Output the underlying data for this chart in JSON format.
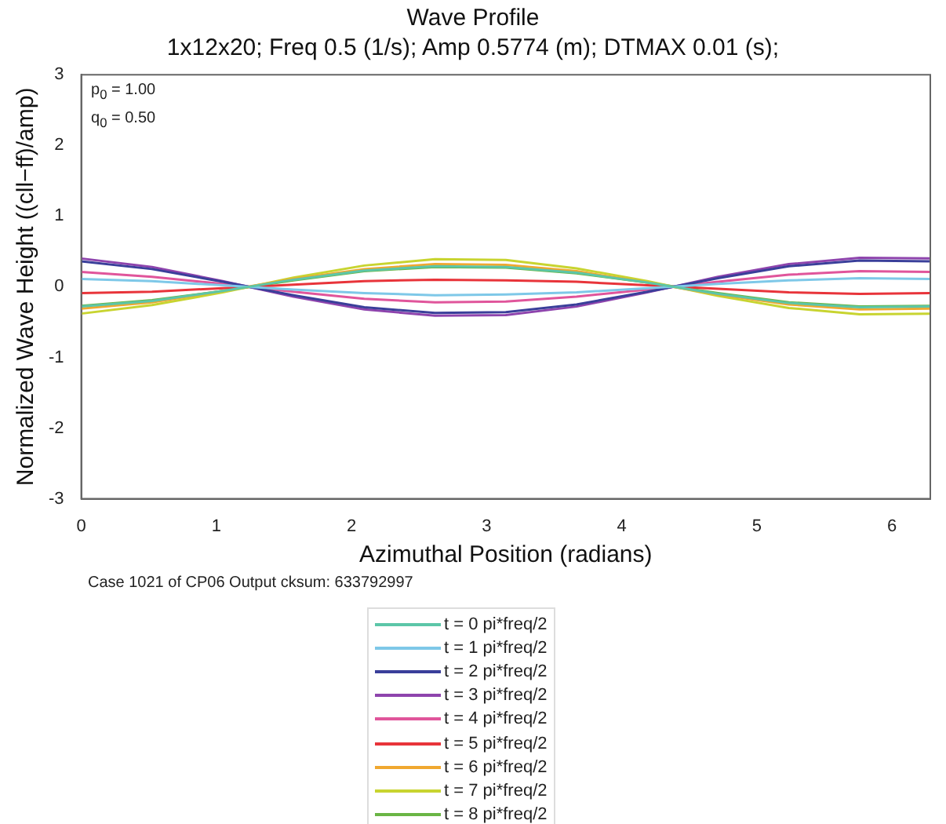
{
  "chart_data": {
    "type": "line",
    "title": "Wave Profile",
    "subtitle": "1x12x20; Freq 0.5 (1/s); Amp 0.5774 (m); DTMAX 0.01 (s);",
    "xlabel": "Azimuthal Position (radians)",
    "ylabel": "Normalized Wave Height ((cll−ff)/amp)",
    "x": [
      0,
      0.5236,
      1.0472,
      1.5708,
      2.0944,
      2.618,
      3.1416,
      3.6652,
      4.1888,
      4.7124,
      5.236,
      5.7596,
      6.2832
    ],
    "xlim": [
      0,
      6.2832
    ],
    "xticks": [
      0,
      1,
      2,
      3,
      4,
      5,
      6
    ],
    "ylim": [
      -3,
      3
    ],
    "yticks": [
      -3,
      -2,
      -1,
      0,
      1,
      2,
      3
    ],
    "grid": false,
    "legend": "bottom",
    "marker": "none",
    "line_style": "solid",
    "annotations": [
      "p$_{0}$ = 1.00",
      "q$_{0}$ = 0.50",
      "Case 1021 of CP06 Output cksum: 633792997"
    ],
    "series": [
      {
        "name": "t = 0 pi*freq/2",
        "color": "#5cc6a8",
        "values": [
          -0.28,
          -0.2,
          -0.06,
          0.1,
          0.23,
          0.29,
          0.28,
          0.2,
          0.06,
          -0.1,
          -0.23,
          -0.29,
          -0.28
        ]
      },
      {
        "name": "t = 1 pi*freq/2",
        "color": "#7ec8e8",
        "values": [
          0.11,
          0.08,
          0.02,
          -0.04,
          -0.09,
          -0.12,
          -0.11,
          -0.08,
          -0.02,
          0.04,
          0.09,
          0.12,
          0.11
        ]
      },
      {
        "name": "t = 2 pi*freq/2",
        "color": "#3a3f9a",
        "values": [
          0.36,
          0.25,
          0.07,
          -0.12,
          -0.29,
          -0.37,
          -0.36,
          -0.25,
          -0.07,
          0.12,
          0.29,
          0.37,
          0.36
        ]
      },
      {
        "name": "t = 3 pi*freq/2",
        "color": "#8e44ad",
        "values": [
          0.4,
          0.28,
          0.08,
          -0.14,
          -0.32,
          -0.41,
          -0.4,
          -0.28,
          -0.08,
          0.14,
          0.32,
          0.41,
          0.4
        ]
      },
      {
        "name": "t = 4 pi*freq/2",
        "color": "#e0559b",
        "values": [
          0.21,
          0.14,
          0.04,
          -0.07,
          -0.17,
          -0.22,
          -0.21,
          -0.14,
          -0.04,
          0.07,
          0.17,
          0.22,
          0.21
        ]
      },
      {
        "name": "t = 5 pi*freq/2",
        "color": "#e8343a",
        "values": [
          -0.09,
          -0.07,
          -0.02,
          0.03,
          0.08,
          0.1,
          0.09,
          0.07,
          0.02,
          -0.03,
          -0.08,
          -0.1,
          -0.09
        ]
      },
      {
        "name": "t = 6 pi*freq/2",
        "color": "#f0a830",
        "values": [
          -0.31,
          -0.22,
          -0.06,
          0.11,
          0.25,
          0.32,
          0.31,
          0.22,
          0.06,
          -0.11,
          -0.25,
          -0.32,
          -0.31
        ]
      },
      {
        "name": "t = 7 pi*freq/2",
        "color": "#c8d430",
        "values": [
          -0.38,
          -0.26,
          -0.08,
          0.13,
          0.3,
          0.39,
          0.38,
          0.26,
          0.08,
          -0.13,
          -0.3,
          -0.39,
          -0.38
        ]
      },
      {
        "name": "t = 8 pi*freq/2",
        "color": "#6ab545",
        "values": [
          -0.27,
          -0.19,
          -0.06,
          0.09,
          0.22,
          0.28,
          0.27,
          0.19,
          0.06,
          -0.09,
          -0.22,
          -0.28,
          -0.27
        ]
      }
    ]
  }
}
